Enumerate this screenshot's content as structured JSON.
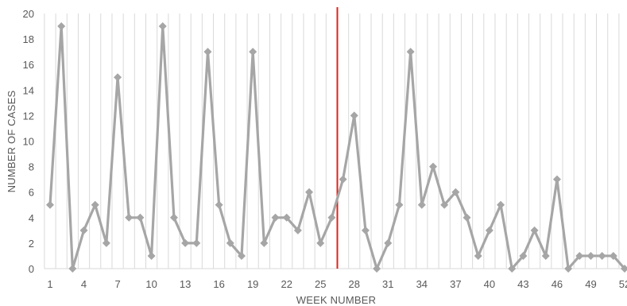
{
  "chart_data": {
    "type": "line",
    "xlabel": "WEEK NUMBER",
    "ylabel": "NUMBER OF CASES",
    "ylim": [
      0,
      20
    ],
    "y_ticks": [
      0,
      2,
      4,
      6,
      8,
      10,
      12,
      14,
      16,
      18,
      20
    ],
    "x_tick_labels": [
      {
        "week": 1,
        "label": "1"
      },
      {
        "week": 4,
        "label": "4"
      },
      {
        "week": 7,
        "label": "7"
      },
      {
        "week": 10,
        "label": "10"
      },
      {
        "week": 13,
        "label": "13"
      },
      {
        "week": 16,
        "label": "16"
      },
      {
        "week": 19,
        "label": "19"
      },
      {
        "week": 22,
        "label": "22"
      },
      {
        "week": 25,
        "label": "25"
      },
      {
        "week": 28,
        "label": "28"
      },
      {
        "week": 31,
        "label": "31"
      },
      {
        "week": 34,
        "label": "34"
      },
      {
        "week": 37,
        "label": "37"
      },
      {
        "week": 40,
        "label": "40"
      },
      {
        "week": 43,
        "label": "43"
      },
      {
        "week": 46,
        "label": "46"
      },
      {
        "week": 49,
        "label": "49"
      },
      {
        "week": 52,
        "label": "52"
      }
    ],
    "vertical_gridlines": true,
    "marker": "diamond",
    "series_color": "#a6a6a6",
    "reference_line": {
      "after_week": 26,
      "color": "#e32119"
    },
    "x": [
      1,
      2,
      3,
      4,
      5,
      6,
      7,
      8,
      9,
      10,
      11,
      12,
      13,
      14,
      15,
      16,
      17,
      18,
      19,
      20,
      21,
      22,
      23,
      24,
      25,
      26,
      27,
      28,
      29,
      30,
      31,
      32,
      33,
      34,
      35,
      36,
      37,
      38,
      39,
      40,
      41,
      42,
      43,
      44,
      45,
      46,
      47,
      48,
      49,
      50,
      51,
      52
    ],
    "series": [
      {
        "values": [
          5,
          19,
          0,
          3,
          5,
          2,
          15,
          4,
          4,
          1,
          19,
          4,
          2,
          2,
          17,
          5,
          2,
          1,
          17,
          2,
          4,
          4,
          3,
          6,
          2,
          4,
          7,
          12,
          3,
          0,
          2,
          5,
          17,
          5,
          8,
          5,
          6,
          4,
          1,
          3,
          5,
          0,
          1,
          3,
          1,
          7,
          0,
          1,
          1,
          1,
          1,
          0
        ]
      }
    ]
  }
}
